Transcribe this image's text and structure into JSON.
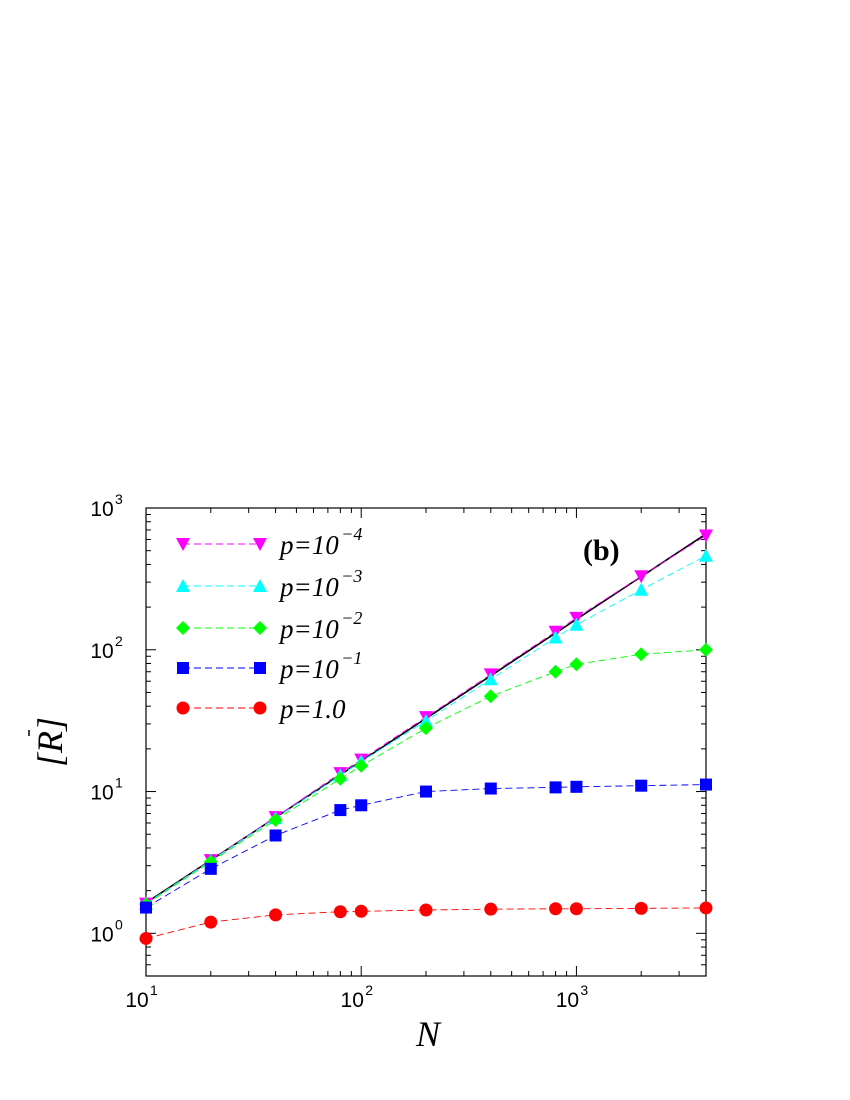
{
  "chart_data": {
    "type": "line",
    "panel_label": "(b)",
    "xlabel": "N",
    "ylabel": "[R]",
    "xscale": "log",
    "yscale": "log",
    "xlim": [
      10,
      4000
    ],
    "ylim": [
      0.5,
      1000
    ],
    "grid": false,
    "legend_position": "top-left",
    "x_major_ticks": [
      10,
      100,
      1000
    ],
    "y_major_ticks": [
      1,
      10,
      100,
      1000
    ],
    "x_tick_labels": [
      {
        "base": "10",
        "exp": "1"
      },
      {
        "base": "10",
        "exp": "2"
      },
      {
        "base": "10",
        "exp": "3"
      }
    ],
    "y_tick_labels": [
      {
        "base": "10",
        "exp": "0"
      },
      {
        "base": "10",
        "exp": "1"
      },
      {
        "base": "10",
        "exp": "2"
      },
      {
        "base": "10",
        "exp": "3"
      }
    ],
    "x": [
      10,
      20,
      40,
      80,
      100,
      200,
      400,
      800,
      1000,
      2000,
      4000
    ],
    "series": [
      {
        "name": "p=10^-4",
        "legend_base": "p=10",
        "legend_exp": "−4",
        "marker": "triangle-down",
        "color": "#ff00ff",
        "values": [
          1.62,
          3.28,
          6.6,
          13.5,
          16.8,
          33.5,
          67,
          134,
          168,
          330,
          640
        ]
      },
      {
        "name": "p=10^-3",
        "legend_base": "p=10",
        "legend_exp": "−3",
        "marker": "triangle-up",
        "color": "#00ffff",
        "values": [
          1.62,
          3.25,
          6.5,
          13.0,
          16.3,
          31.5,
          62,
          122,
          150,
          265,
          460
        ]
      },
      {
        "name": "p=10^-2",
        "legend_base": "p=10",
        "legend_exp": "−2",
        "marker": "diamond",
        "color": "#00ff00",
        "values": [
          1.6,
          3.2,
          6.3,
          12.3,
          15.2,
          28,
          47,
          70,
          79,
          93,
          100
        ]
      },
      {
        "name": "p=10^-1",
        "legend_base": "p=10",
        "legend_exp": "−1",
        "marker": "square",
        "color": "#0000ff",
        "values": [
          1.52,
          2.85,
          4.9,
          7.4,
          8.0,
          10.0,
          10.5,
          10.7,
          10.8,
          11.0,
          11.2
        ]
      },
      {
        "name": "p=1.0",
        "legend_base": "p=1.0",
        "legend_exp": "",
        "marker": "circle",
        "color": "#ff0000",
        "values": [
          0.92,
          1.2,
          1.35,
          1.42,
          1.43,
          1.46,
          1.48,
          1.49,
          1.49,
          1.5,
          1.51
        ]
      }
    ],
    "reference_line": {
      "color": "#000000",
      "x": [
        10,
        4000
      ],
      "values": [
        1.64,
        656
      ]
    }
  }
}
